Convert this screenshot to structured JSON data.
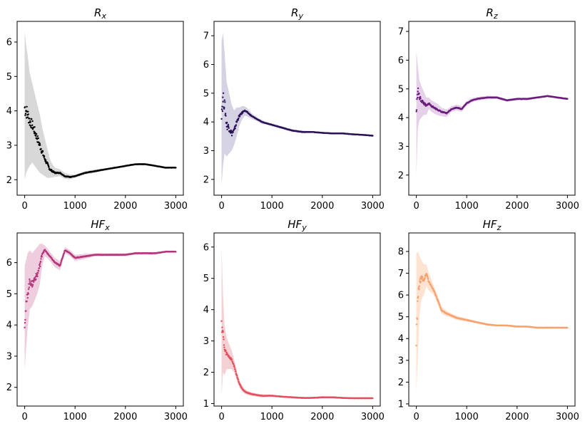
{
  "chart_data": [
    {
      "type": "scatter",
      "title_main": "R",
      "title_sub": "x",
      "xlim": [
        -150,
        3150
      ],
      "ylim": [
        1.55,
        6.6
      ],
      "xticks": [
        0,
        1000,
        2000,
        3000
      ],
      "xtick_labels": [
        "0",
        "1000",
        "2000",
        "3000"
      ],
      "yticks": [
        2,
        3,
        4,
        5,
        6
      ],
      "ytick_labels": [
        "2",
        "3",
        "4",
        "5",
        "6"
      ],
      "color": "#000004",
      "band_color": "#d4d4d4",
      "series": [
        {
          "x": [
            0,
            30,
            60,
            100,
            150,
            200,
            250,
            300,
            350,
            400,
            450,
            500,
            550,
            600,
            700,
            800,
            900,
            1000,
            1100,
            1200,
            1400,
            1600,
            1800,
            2000,
            2200,
            2400,
            2600,
            2800,
            3000
          ],
          "values": [
            4.1,
            4.0,
            3.9,
            3.7,
            3.6,
            3.4,
            3.2,
            3.0,
            2.8,
            2.6,
            2.45,
            2.3,
            2.25,
            2.2,
            2.2,
            2.1,
            2.08,
            2.1,
            2.15,
            2.2,
            2.25,
            2.3,
            2.35,
            2.4,
            2.45,
            2.45,
            2.4,
            2.35,
            2.35
          ],
          "band_upper": [
            6.3,
            5.9,
            5.6,
            5.1,
            4.8,
            4.5,
            4.2,
            3.9,
            3.5,
            3.2,
            2.9,
            2.6,
            2.45,
            2.35,
            2.3,
            2.2,
            2.15,
            2.15,
            2.2,
            2.25,
            2.3,
            2.33,
            2.38,
            2.43,
            2.48,
            2.48,
            2.43,
            2.38,
            2.37
          ],
          "band_lower": [
            2.0,
            2.2,
            2.3,
            2.4,
            2.5,
            2.4,
            2.3,
            2.2,
            2.15,
            2.1,
            2.05,
            2.05,
            2.07,
            2.08,
            2.1,
            2.02,
            2.01,
            2.05,
            2.1,
            2.15,
            2.2,
            2.27,
            2.32,
            2.37,
            2.42,
            2.42,
            2.37,
            2.32,
            2.33
          ]
        }
      ]
    },
    {
      "type": "scatter",
      "title_main": "R",
      "title_sub": "y",
      "xlim": [
        -150,
        3150
      ],
      "ylim": [
        1.45,
        7.5
      ],
      "xticks": [
        0,
        1000,
        2000,
        3000
      ],
      "xtick_labels": [
        "0",
        "1000",
        "2000",
        "3000"
      ],
      "yticks": [
        2,
        3,
        4,
        5,
        6,
        7
      ],
      "ytick_labels": [
        "2",
        "3",
        "4",
        "5",
        "6",
        "7"
      ],
      "color": "#2b1256",
      "band_color": "#cfcde0",
      "series": [
        {
          "x": [
            0,
            30,
            60,
            100,
            150,
            200,
            250,
            300,
            350,
            400,
            450,
            500,
            600,
            700,
            800,
            900,
            1000,
            1200,
            1400,
            1600,
            1800,
            2000,
            2200,
            2400,
            2600,
            2800,
            3000
          ],
          "values": [
            4.4,
            4.8,
            4.6,
            3.9,
            3.8,
            3.6,
            3.7,
            4.0,
            4.2,
            4.3,
            4.4,
            4.35,
            4.2,
            4.1,
            4.0,
            3.95,
            3.9,
            3.8,
            3.7,
            3.65,
            3.65,
            3.62,
            3.6,
            3.6,
            3.57,
            3.55,
            3.52
          ],
          "band_upper": [
            6.8,
            7.1,
            6.4,
            5.4,
            5.0,
            4.6,
            4.4,
            4.5,
            4.5,
            4.55,
            4.55,
            4.5,
            4.3,
            4.17,
            4.07,
            4.0,
            3.95,
            3.85,
            3.75,
            3.7,
            3.68,
            3.65,
            3.63,
            3.62,
            3.6,
            3.57,
            3.55
          ],
          "band_lower": [
            1.8,
            2.5,
            2.9,
            2.8,
            2.9,
            3.0,
            3.2,
            3.5,
            3.85,
            4.05,
            4.2,
            4.2,
            4.1,
            4.03,
            3.93,
            3.9,
            3.85,
            3.75,
            3.65,
            3.6,
            3.62,
            3.59,
            3.57,
            3.58,
            3.54,
            3.53,
            3.5
          ]
        }
      ]
    },
    {
      "type": "scatter",
      "title_main": "R",
      "title_sub": "z",
      "xlim": [
        -150,
        3150
      ],
      "ylim": [
        1.3,
        7.35
      ],
      "xticks": [
        0,
        1000,
        2000,
        3000
      ],
      "xtick_labels": [
        "0",
        "1000",
        "2000",
        "3000"
      ],
      "yticks": [
        2,
        3,
        4,
        5,
        6,
        7
      ],
      "ytick_labels": [
        "2",
        "3",
        "4",
        "5",
        "6",
        "7"
      ],
      "color": "#6b1e7c",
      "band_color": "#e2cce6",
      "series": [
        {
          "x": [
            0,
            30,
            60,
            100,
            150,
            200,
            250,
            300,
            400,
            500,
            600,
            700,
            800,
            900,
            1000,
            1100,
            1200,
            1400,
            1600,
            1800,
            2000,
            2200,
            2400,
            2600,
            2800,
            3000
          ],
          "values": [
            4.2,
            5.0,
            4.7,
            4.6,
            4.5,
            4.4,
            4.5,
            4.4,
            4.3,
            4.2,
            4.15,
            4.3,
            4.35,
            4.3,
            4.5,
            4.6,
            4.65,
            4.7,
            4.7,
            4.6,
            4.65,
            4.65,
            4.7,
            4.75,
            4.7,
            4.65
          ],
          "band_upper": [
            6.3,
            5.8,
            5.3,
            5.1,
            4.9,
            4.7,
            4.7,
            4.6,
            4.5,
            4.35,
            4.28,
            4.4,
            4.45,
            4.4,
            4.58,
            4.67,
            4.72,
            4.76,
            4.75,
            4.65,
            4.7,
            4.7,
            4.74,
            4.79,
            4.74,
            4.69
          ],
          "band_lower": [
            2.0,
            3.6,
            3.9,
            4.0,
            4.1,
            4.1,
            4.3,
            4.2,
            4.1,
            4.05,
            4.02,
            4.2,
            4.25,
            4.2,
            4.42,
            4.53,
            4.58,
            4.64,
            4.65,
            4.55,
            4.6,
            4.6,
            4.66,
            4.71,
            4.66,
            4.61
          ]
        }
      ]
    },
    {
      "type": "scatter",
      "title_main": "HF",
      "title_sub": "x",
      "xlim": [
        -150,
        3150
      ],
      "ylim": [
        1.4,
        6.95
      ],
      "xticks": [
        0,
        1000,
        2000,
        3000
      ],
      "xtick_labels": [
        "0",
        "1000",
        "2000",
        "3000"
      ],
      "yticks": [
        2,
        3,
        4,
        5,
        6
      ],
      "ytick_labels": [
        "2",
        "3",
        "4",
        "5",
        "6"
      ],
      "color": "#b5367a",
      "band_color": "#ecc8da",
      "series": [
        {
          "x": [
            0,
            30,
            60,
            100,
            150,
            200,
            250,
            300,
            350,
            400,
            450,
            500,
            600,
            700,
            800,
            900,
            1000,
            1200,
            1400,
            1600,
            1800,
            2000,
            2200,
            2400,
            2600,
            2800,
            3000
          ],
          "values": [
            4.1,
            4.6,
            5.0,
            5.4,
            5.3,
            5.5,
            5.6,
            5.9,
            6.3,
            6.4,
            6.3,
            6.2,
            6.0,
            5.9,
            6.4,
            6.3,
            6.15,
            6.2,
            6.25,
            6.25,
            6.25,
            6.25,
            6.3,
            6.3,
            6.3,
            6.35,
            6.35
          ],
          "band_upper": [
            5.9,
            6.1,
            6.3,
            6.4,
            6.3,
            6.4,
            6.5,
            6.6,
            6.6,
            6.55,
            6.45,
            6.35,
            6.15,
            6.05,
            6.5,
            6.4,
            6.25,
            6.28,
            6.3,
            6.3,
            6.3,
            6.3,
            6.34,
            6.34,
            6.34,
            6.38,
            6.38
          ],
          "band_lower": [
            2.6,
            3.3,
            3.9,
            4.5,
            4.6,
            4.8,
            5.0,
            5.3,
            5.9,
            6.2,
            6.15,
            6.05,
            5.85,
            5.75,
            6.3,
            6.2,
            6.05,
            6.12,
            6.2,
            6.2,
            6.2,
            6.2,
            6.26,
            6.26,
            6.26,
            6.32,
            6.32
          ]
        }
      ]
    },
    {
      "type": "scatter",
      "title_main": "HF",
      "title_sub": "y",
      "xlim": [
        -150,
        3150
      ],
      "ylim": [
        0.92,
        6.45
      ],
      "xticks": [
        0,
        1000,
        2000,
        3000
      ],
      "xtick_labels": [
        "0",
        "1000",
        "2000",
        "3000"
      ],
      "yticks": [
        1,
        2,
        3,
        4,
        5,
        6
      ],
      "ytick_labels": [
        "1",
        "2",
        "3",
        "4",
        "5",
        "6"
      ],
      "color": "#e34f5d",
      "band_color": "#f4ccd0",
      "series": [
        {
          "x": [
            0,
            30,
            60,
            100,
            150,
            200,
            250,
            300,
            350,
            400,
            450,
            500,
            600,
            700,
            800,
            1000,
            1200,
            1400,
            1600,
            1800,
            2000,
            2200,
            2400,
            2600,
            2800,
            3000
          ],
          "values": [
            3.6,
            3.2,
            2.7,
            2.6,
            2.5,
            2.4,
            2.2,
            1.9,
            1.65,
            1.5,
            1.4,
            1.35,
            1.3,
            1.27,
            1.25,
            1.25,
            1.22,
            1.2,
            1.18,
            1.18,
            1.2,
            1.2,
            1.18,
            1.17,
            1.17,
            1.17
          ],
          "band_upper": [
            6.0,
            4.4,
            3.5,
            3.1,
            2.9,
            2.7,
            2.4,
            2.05,
            1.78,
            1.6,
            1.48,
            1.42,
            1.36,
            1.32,
            1.3,
            1.28,
            1.25,
            1.23,
            1.21,
            1.21,
            1.23,
            1.23,
            1.21,
            1.2,
            1.2,
            1.2
          ],
          "band_lower": [
            1.3,
            2.0,
            1.9,
            2.1,
            2.1,
            2.1,
            2.0,
            1.75,
            1.52,
            1.4,
            1.32,
            1.28,
            1.24,
            1.22,
            1.2,
            1.22,
            1.19,
            1.17,
            1.15,
            1.15,
            1.17,
            1.17,
            1.15,
            1.14,
            1.14,
            1.14
          ]
        }
      ]
    },
    {
      "type": "scatter",
      "title_main": "HF",
      "title_sub": "z",
      "xlim": [
        -150,
        3150
      ],
      "ylim": [
        0.9,
        8.85
      ],
      "xticks": [
        0,
        1000,
        2000,
        3000
      ],
      "xtick_labels": [
        "0",
        "1000",
        "2000",
        "3000"
      ],
      "yticks": [
        1,
        2,
        3,
        4,
        5,
        6,
        7,
        8
      ],
      "ytick_labels": [
        "1",
        "2",
        "3",
        "4",
        "5",
        "6",
        "7",
        "8"
      ],
      "color": "#f9a16e",
      "band_color": "#fde0cc",
      "series": [
        {
          "x": [
            0,
            30,
            60,
            100,
            150,
            200,
            250,
            300,
            350,
            400,
            450,
            500,
            600,
            700,
            800,
            900,
            1000,
            1200,
            1400,
            1600,
            1800,
            2000,
            2200,
            2400,
            2600,
            2800,
            3000
          ],
          "values": [
            4.0,
            5.8,
            6.5,
            6.8,
            6.7,
            7.0,
            6.6,
            6.4,
            6.2,
            5.9,
            5.6,
            5.3,
            5.15,
            5.05,
            4.95,
            4.9,
            4.85,
            4.75,
            4.65,
            4.6,
            4.6,
            4.55,
            4.55,
            4.5,
            4.5,
            4.5,
            4.5
          ],
          "band_upper": [
            7.9,
            8.0,
            7.8,
            7.6,
            7.4,
            7.4,
            7.0,
            6.7,
            6.4,
            6.1,
            5.8,
            5.45,
            5.28,
            5.15,
            5.05,
            4.98,
            4.92,
            4.8,
            4.7,
            4.64,
            4.64,
            4.59,
            4.58,
            4.54,
            4.54,
            4.53,
            4.53
          ],
          "band_lower": [
            1.5,
            3.2,
            5.0,
            5.8,
            6.0,
            6.4,
            6.2,
            6.1,
            6.0,
            5.7,
            5.4,
            5.15,
            5.02,
            4.95,
            4.85,
            4.82,
            4.78,
            4.7,
            4.6,
            4.56,
            4.56,
            4.51,
            4.52,
            4.46,
            4.46,
            4.47,
            4.47
          ]
        }
      ]
    }
  ]
}
